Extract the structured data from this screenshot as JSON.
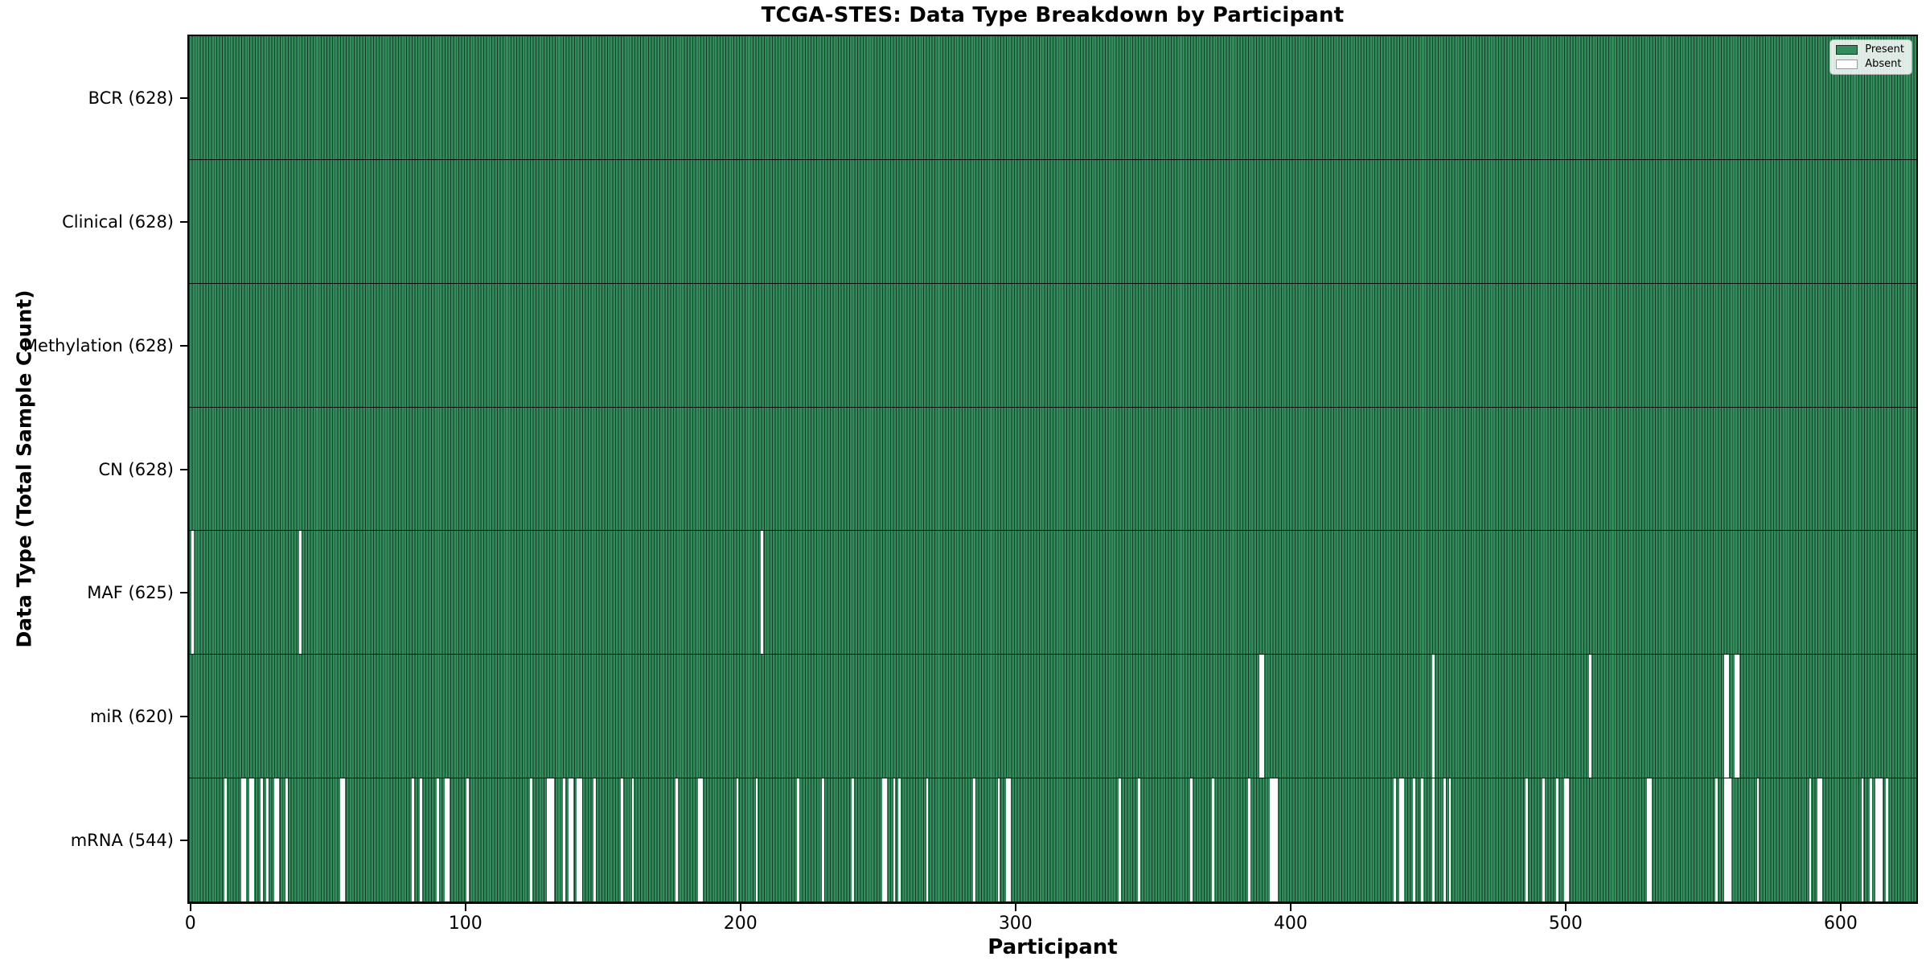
{
  "chart_data": {
    "type": "heatmap",
    "title": "TCGA-STES: Data Type Breakdown by Participant",
    "xlabel": "Participant",
    "ylabel": "Data Type (Total Sample Count)",
    "x_ticks": [
      0,
      100,
      200,
      300,
      400,
      500,
      600
    ],
    "n_participants": 628,
    "xlim": [
      -0.5,
      627.5
    ],
    "grid": false,
    "legend": {
      "position": "upper right",
      "entries": [
        {
          "label": "Present",
          "color": "#348c5c"
        },
        {
          "label": "Absent",
          "color": "#ffffff"
        }
      ]
    },
    "colors": {
      "present": "#348c5c",
      "absent": "#fcfcfc",
      "bar_edge": "rgba(8,30,18,0.72)",
      "row_separator": "#000000",
      "spine": "#000000"
    },
    "rows": [
      {
        "name": "BCR",
        "label": "BCR (628)",
        "count": 628,
        "absent": []
      },
      {
        "name": "Clinical",
        "label": "Clinical (628)",
        "count": 628,
        "absent": []
      },
      {
        "name": "Methylation",
        "label": "Methylation (628)",
        "count": 628,
        "absent": []
      },
      {
        "name": "CN",
        "label": "CN (628)",
        "count": 628,
        "absent": []
      },
      {
        "name": "MAF",
        "label": "MAF (625)",
        "count": 625,
        "absent": [
          1,
          40,
          208
        ]
      },
      {
        "name": "miR",
        "label": "miR (620)",
        "count": 620,
        "absent": [
          389,
          390,
          452,
          509,
          558,
          559,
          562,
          563
        ]
      },
      {
        "name": "mRNA",
        "label": "mRNA (544)",
        "count": 544,
        "absent": [
          13,
          19,
          20,
          22,
          23,
          26,
          28,
          31,
          32,
          35,
          55,
          56,
          81,
          84,
          90,
          93,
          94,
          101,
          124,
          130,
          131,
          132,
          136,
          138,
          139,
          141,
          142,
          147,
          157,
          161,
          177,
          185,
          186,
          199,
          206,
          221,
          230,
          241,
          252,
          253,
          256,
          258,
          268,
          285,
          294,
          297,
          298,
          338,
          345,
          364,
          372,
          385,
          393,
          394,
          395,
          438,
          440,
          441,
          445,
          448,
          452,
          456,
          458,
          486,
          492,
          497,
          500,
          501,
          530,
          531,
          555,
          558,
          559,
          560,
          570,
          589,
          592,
          593,
          608,
          611,
          613,
          614,
          615,
          617
        ]
      }
    ]
  }
}
